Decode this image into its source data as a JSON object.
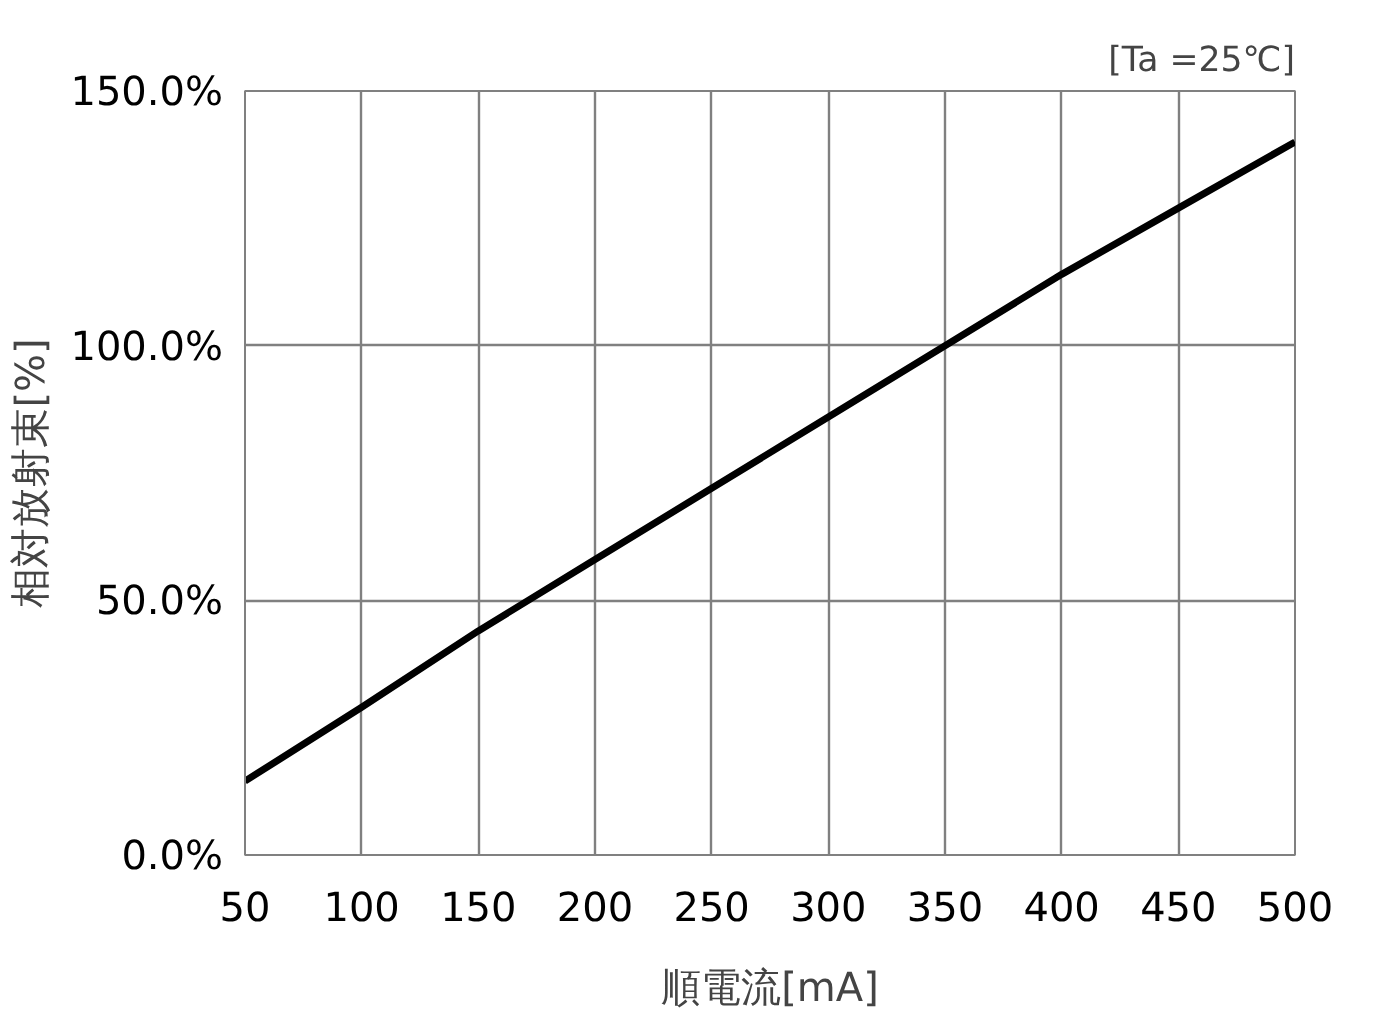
{
  "chart_data": {
    "type": "line",
    "xlabel": "順電流[mA]",
    "ylabel": "相対放射束[%]",
    "annotations": [
      "[Ta =25℃]"
    ],
    "x": [
      50,
      100,
      150,
      200,
      250,
      300,
      350,
      400,
      450,
      500
    ],
    "series": [
      {
        "color": "#000000",
        "values": [
          14.5,
          29,
          44,
          58,
          72,
          86,
          100,
          114,
          127,
          140
        ]
      }
    ],
    "xlim": [
      50,
      500
    ],
    "xticks": [
      50,
      100,
      150,
      200,
      250,
      300,
      350,
      400,
      450,
      500
    ],
    "ylim": [
      0,
      150
    ],
    "yticks": [
      {
        "value": 0,
        "label": "0.0%"
      },
      {
        "value": 50,
        "label": "50.0%"
      },
      {
        "value": 100,
        "label": "100.0%"
      },
      {
        "value": 150,
        "label": "150.0%"
      }
    ],
    "grid": true,
    "marker": "none",
    "line_style": "solid"
  }
}
